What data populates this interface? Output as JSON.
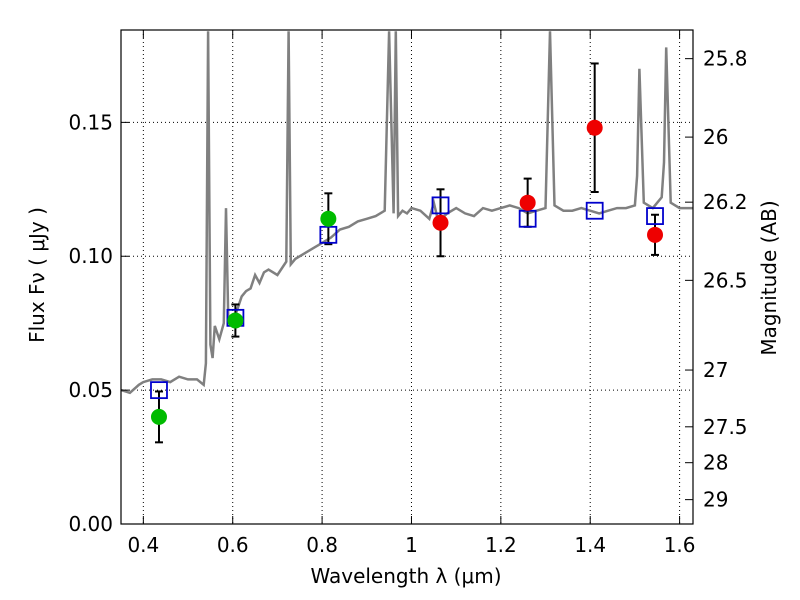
{
  "chart_data": {
    "type": "scatter",
    "xlabel": "Wavelength  λ (μm)",
    "ylabel": "Flux  Fν ( μJy )",
    "y2label": "Magnitude (AB)",
    "xlim": [
      0.35,
      1.63
    ],
    "ylim": [
      0.0,
      0.1845
    ],
    "x_ticks": [
      0.4,
      0.6,
      0.8,
      1.0,
      1.2,
      1.4,
      1.6
    ],
    "x_tick_labels": [
      "0.4",
      "0.6",
      "0.8",
      "1",
      "1.2",
      "1.4",
      "1.6"
    ],
    "y_ticks": [
      0.0,
      0.05,
      0.1,
      0.15
    ],
    "y_tick_labels": [
      "0.00",
      "0.05",
      "0.10",
      "0.15"
    ],
    "y2_ticks": [
      {
        "flux": 0.1738,
        "label": "25.8"
      },
      {
        "flux": 0.1445,
        "label": "26"
      },
      {
        "flux": 0.1202,
        "label": "26.2"
      },
      {
        "flux": 0.091,
        "label": "26.5"
      },
      {
        "flux": 0.0575,
        "label": "27"
      },
      {
        "flux": 0.0363,
        "label": "27.5"
      },
      {
        "flux": 0.0229,
        "label": "28"
      },
      {
        "flux": 0.0091,
        "label": "29"
      }
    ],
    "grid": true,
    "colors": {
      "model": "#808080",
      "green": "#00bb00",
      "red": "#ee0000",
      "model_box": "#0000cc",
      "errorbar": "#000000"
    },
    "series": [
      {
        "marker": "green-circle",
        "points": [
          {
            "x": 0.435,
            "y": 0.04,
            "err_low": 0.0095,
            "err_high": 0.0095
          },
          {
            "x": 0.606,
            "y": 0.076,
            "err_low": 0.006,
            "err_high": 0.006
          },
          {
            "x": 0.814,
            "y": 0.114,
            "err_low": 0.0095,
            "err_high": 0.0095
          }
        ]
      },
      {
        "marker": "red-circle",
        "points": [
          {
            "x": 1.065,
            "y": 0.1125,
            "err_low": 0.0125,
            "err_high": 0.0125
          },
          {
            "x": 1.26,
            "y": 0.12,
            "err_low": 0.009,
            "err_high": 0.009
          },
          {
            "x": 1.41,
            "y": 0.148,
            "err_low": 0.024,
            "err_high": 0.024
          },
          {
            "x": 1.545,
            "y": 0.108,
            "err_low": 0.0075,
            "err_high": 0.0075
          }
        ]
      },
      {
        "marker": "blue-open-square",
        "points": [
          {
            "x": 0.435,
            "y": 0.05
          },
          {
            "x": 0.606,
            "y": 0.077
          },
          {
            "x": 0.814,
            "y": 0.108
          },
          {
            "x": 1.065,
            "y": 0.119
          },
          {
            "x": 1.26,
            "y": 0.114
          },
          {
            "x": 1.41,
            "y": 0.117
          },
          {
            "x": 1.545,
            "y": 0.115
          }
        ]
      },
      {
        "marker": "gray-line",
        "x": [
          0.35,
          0.37,
          0.39,
          0.4,
          0.42,
          0.44,
          0.46,
          0.48,
          0.5,
          0.52,
          0.535,
          0.54,
          0.545,
          0.55,
          0.555,
          0.56,
          0.57,
          0.58,
          0.585,
          0.59,
          0.6,
          0.62,
          0.63,
          0.64,
          0.65,
          0.66,
          0.67,
          0.68,
          0.7,
          0.72,
          0.725,
          0.73,
          0.74,
          0.76,
          0.78,
          0.8,
          0.82,
          0.84,
          0.86,
          0.88,
          0.9,
          0.92,
          0.94,
          0.95,
          0.96,
          0.965,
          0.97,
          0.98,
          0.99,
          1.0,
          1.02,
          1.04,
          1.05,
          1.06,
          1.08,
          1.1,
          1.12,
          1.14,
          1.16,
          1.18,
          1.2,
          1.22,
          1.24,
          1.26,
          1.28,
          1.3,
          1.31,
          1.32,
          1.34,
          1.36,
          1.38,
          1.4,
          1.42,
          1.44,
          1.46,
          1.48,
          1.5,
          1.505,
          1.51,
          1.52,
          1.54,
          1.56,
          1.565,
          1.57,
          1.58,
          1.6,
          1.63
        ],
        "y": [
          0.05,
          0.049,
          0.052,
          0.053,
          0.054,
          0.054,
          0.053,
          0.055,
          0.054,
          0.054,
          0.052,
          0.06,
          0.184,
          0.067,
          0.062,
          0.074,
          0.069,
          0.075,
          0.118,
          0.076,
          0.075,
          0.085,
          0.087,
          0.088,
          0.093,
          0.09,
          0.094,
          0.095,
          0.093,
          0.098,
          0.184,
          0.097,
          0.099,
          0.101,
          0.103,
          0.105,
          0.107,
          0.11,
          0.111,
          0.113,
          0.114,
          0.115,
          0.117,
          0.184,
          0.116,
          0.184,
          0.115,
          0.117,
          0.116,
          0.118,
          0.117,
          0.114,
          0.12,
          0.113,
          0.116,
          0.118,
          0.116,
          0.115,
          0.118,
          0.117,
          0.118,
          0.119,
          0.118,
          0.116,
          0.117,
          0.118,
          0.184,
          0.119,
          0.117,
          0.117,
          0.118,
          0.117,
          0.116,
          0.117,
          0.118,
          0.118,
          0.119,
          0.13,
          0.17,
          0.12,
          0.118,
          0.122,
          0.135,
          0.178,
          0.12,
          0.118,
          0.118
        ]
      }
    ]
  }
}
